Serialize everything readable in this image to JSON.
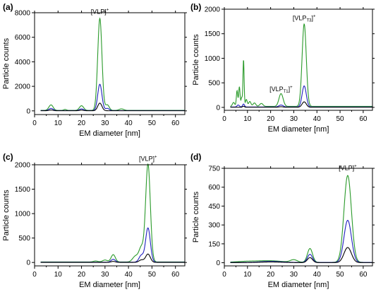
{
  "chart_data": [
    {
      "type": "line",
      "panel_label": "(a)",
      "xlabel": "EM diameter [nm]",
      "ylabel": "Particle counts",
      "xlim": [
        0,
        64
      ],
      "ylim": [
        -300,
        8000
      ],
      "x_ticks": [
        0,
        10,
        20,
        30,
        40,
        50,
        60
      ],
      "y_ticks": [
        0,
        2000,
        4000,
        6000,
        8000
      ],
      "annotations": [
        {
          "text": "[VLP]",
          "sub": "",
          "sup": "+",
          "x": 27.8,
          "y": 7900
        }
      ],
      "series": [
        {
          "color": "#2a9a2a",
          "peaks": [
            [
              7,
              450,
              0.9
            ],
            [
              13,
              80,
              0.6
            ],
            [
              20,
              380,
              0.9
            ],
            [
              27.8,
              7500,
              0.9
            ],
            [
              31,
              450,
              0.8
            ],
            [
              37,
              120,
              1.0
            ]
          ],
          "baseline": 40
        },
        {
          "color": "#1f1fbf",
          "peaks": [
            [
              7,
              180,
              0.9
            ],
            [
              20,
              140,
              0.9
            ],
            [
              27.8,
              2150,
              0.9
            ],
            [
              31,
              180,
              0.8
            ]
          ],
          "baseline": 20
        },
        {
          "color": "#000000",
          "peaks": [
            [
              7,
              60,
              0.9
            ],
            [
              20,
              50,
              0.9
            ],
            [
              27.8,
              620,
              0.9
            ]
          ],
          "baseline": 10
        }
      ]
    },
    {
      "type": "line",
      "panel_label": "(b)",
      "xlabel": "EM diameter [nm]",
      "ylabel": "Particle counts",
      "xlim": [
        0,
        64
      ],
      "ylim": [
        -60,
        2000
      ],
      "x_ticks": [
        0,
        10,
        20,
        30,
        40,
        50,
        60
      ],
      "y_ticks": [
        0,
        500,
        1000,
        1500,
        2000
      ],
      "annotations": [
        {
          "text": "[VLP",
          "sub": "T3",
          "sup": "+",
          "x": 34.5,
          "y": 1780
        },
        {
          "text": "[VLP",
          "sub": "T1",
          "sup": "+",
          "x": 24.5,
          "y": 330
        }
      ],
      "series": [
        {
          "color": "#2a9a2a",
          "peaks": [
            [
              4,
              80,
              0.5
            ],
            [
              5.5,
              320,
              0.3
            ],
            [
              6.5,
              400,
              0.3
            ],
            [
              7.5,
              180,
              0.3
            ],
            [
              8.3,
              950,
              0.25
            ],
            [
              9.5,
              140,
              0.4
            ],
            [
              11,
              100,
              0.5
            ],
            [
              13,
              70,
              0.6
            ],
            [
              16,
              60,
              0.7
            ],
            [
              24.5,
              260,
              0.9
            ],
            [
              34.5,
              1680,
              0.9
            ]
          ],
          "baseline": 20
        },
        {
          "color": "#1f1fbf",
          "peaks": [
            [
              6,
              40,
              0.5
            ],
            [
              8.3,
              60,
              0.4
            ],
            [
              24.5,
              40,
              0.9
            ],
            [
              34.5,
              430,
              0.9
            ]
          ],
          "baseline": 8
        },
        {
          "color": "#000000",
          "peaks": [
            [
              8.3,
              20,
              0.4
            ],
            [
              24.5,
              10,
              0.9
            ],
            [
              34.5,
              110,
              0.9
            ]
          ],
          "baseline": 3
        }
      ]
    },
    {
      "type": "line",
      "panel_label": "(c)",
      "xlabel": "EM diameter [nm]",
      "ylabel": "Particle counts",
      "xlim": [
        0,
        64
      ],
      "ylim": [
        -70,
        2000
      ],
      "x_ticks": [
        0,
        10,
        20,
        30,
        40,
        50,
        60
      ],
      "y_ticks": [
        0,
        500,
        1000,
        1500,
        2000
      ],
      "annotations": [
        {
          "text": "[VLP]",
          "sub": "",
          "sup": "+",
          "x": 48.3,
          "y": 2080
        }
      ],
      "series": [
        {
          "color": "#2a9a2a",
          "peaks": [
            [
              26,
              20,
              1.0
            ],
            [
              30,
              40,
              1.0
            ],
            [
              33.5,
              150,
              0.9
            ],
            [
              43,
              120,
              1.2
            ],
            [
              45.5,
              290,
              1.0
            ],
            [
              48.3,
              2000,
              1.0
            ]
          ],
          "baseline": 10
        },
        {
          "color": "#1f1fbf",
          "peaks": [
            [
              33.5,
              60,
              0.9
            ],
            [
              45.5,
              140,
              1.0
            ],
            [
              48.3,
              700,
              1.0
            ]
          ],
          "baseline": 5
        },
        {
          "color": "#000000",
          "peaks": [
            [
              33.5,
              20,
              0.9
            ],
            [
              45.5,
              50,
              1.0
            ],
            [
              48.3,
              170,
              1.0
            ]
          ],
          "baseline": 2
        }
      ]
    },
    {
      "type": "line",
      "panel_label": "(d)",
      "xlabel": "EM diameter [nm]",
      "ylabel": "Particle counts",
      "xlim": [
        0,
        64
      ],
      "ylim": [
        -25,
        750
      ],
      "x_ticks": [
        0,
        10,
        20,
        30,
        40,
        50,
        60
      ],
      "y_ticks": [
        0,
        150,
        300,
        450,
        600,
        750
      ],
      "annotations": [
        {
          "text": "[VLP]",
          "sub": "",
          "sup": "+",
          "x": 53.3,
          "y": 735
        }
      ],
      "series": [
        {
          "color": "#2a9a2a",
          "peaks": [
            [
              10,
              8,
              5
            ],
            [
              20,
              12,
              5
            ],
            [
              30,
              20,
              1.5
            ],
            [
              37,
              110,
              1.1
            ],
            [
              53.3,
              690,
              1.6
            ]
          ],
          "baseline": 3
        },
        {
          "color": "#1f1fbf",
          "peaks": [
            [
              20,
              8,
              5
            ],
            [
              37,
              65,
              1.1
            ],
            [
              53.3,
              335,
              1.6
            ]
          ],
          "baseline": 2
        },
        {
          "color": "#000000",
          "peaks": [
            [
              20,
              5,
              5
            ],
            [
              37,
              40,
              1.1
            ],
            [
              53.3,
              120,
              1.6
            ]
          ],
          "baseline": 1
        }
      ]
    }
  ]
}
